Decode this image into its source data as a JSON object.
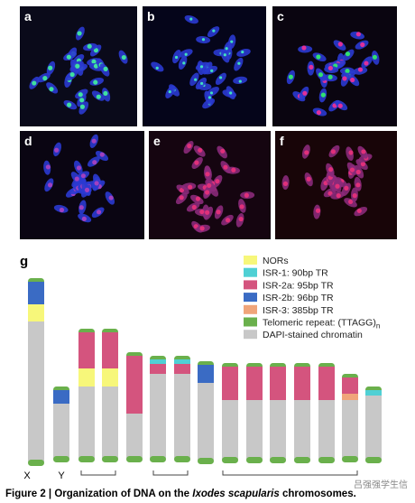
{
  "panels": [
    {
      "label": "a"
    },
    {
      "label": "b"
    },
    {
      "label": "c"
    },
    {
      "label": "d"
    },
    {
      "label": "e"
    },
    {
      "label": "f"
    }
  ],
  "diagram": {
    "label": "g",
    "legend": [
      {
        "text": "NORs",
        "color": "#f7f77a"
      },
      {
        "text": "ISR-1: 90bp TR",
        "color": "#4fd0d4"
      },
      {
        "text": "ISR-2a: 95bp TR",
        "color": "#d4547e"
      },
      {
        "text": "ISR-2b: 96bp TR",
        "color": "#3a6bc4"
      },
      {
        "text": "ISR-3: 385bp TR",
        "color": "#f0a57a"
      },
      {
        "text": "Telomeric repeat: (TTAGG)",
        "subscript": "n",
        "color": "#6ab04c"
      },
      {
        "text": "DAPI-stained chromatin",
        "color": "#c8c8c8"
      }
    ],
    "chromosome_labels": [
      "X",
      "Y"
    ]
  },
  "caption": {
    "prefix": "Figure 2 | Organization of DNA on the ",
    "species": "Ixodes scapularis",
    "suffix": " chromosomes."
  },
  "watermark": "吕强强学生信"
}
